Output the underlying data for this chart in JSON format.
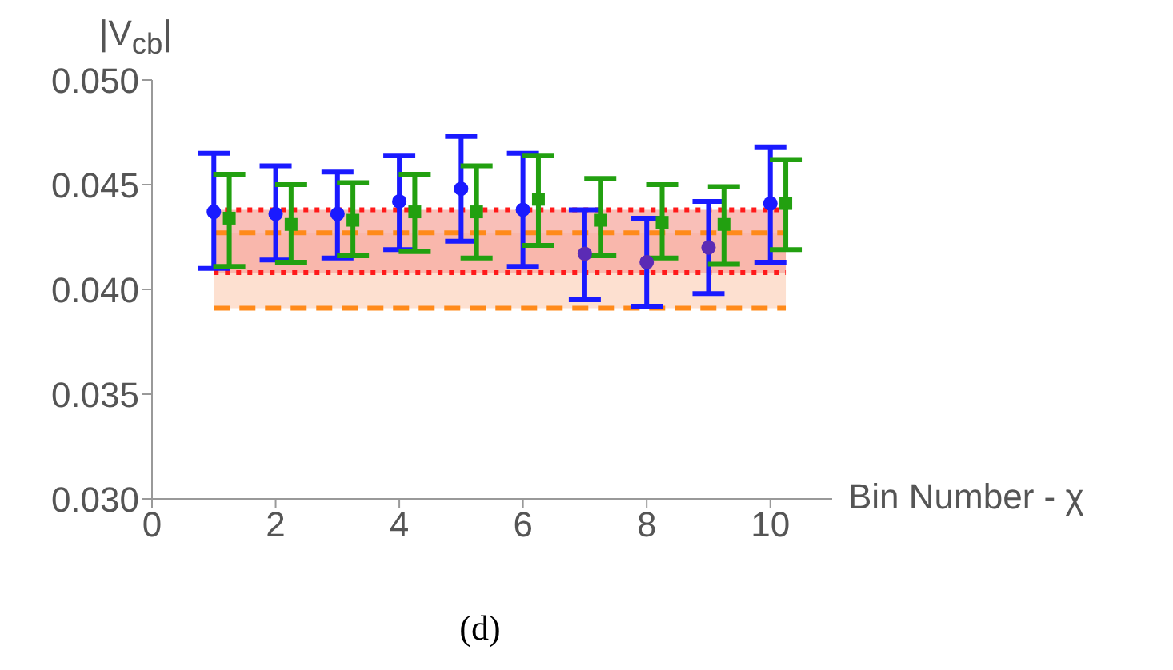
{
  "chart_data": {
    "type": "scatter",
    "xlabel": "Bin Number - χ",
    "ylabel": "|V$_{cb}$|",
    "annotations": [
      "(d)"
    ],
    "xlim": [
      0,
      11
    ],
    "xticks": [
      0,
      2,
      4,
      6,
      8,
      10
    ],
    "ylim": [
      0.03,
      0.05
    ],
    "yticks": [
      {
        "value": 0.03,
        "label": "0.030"
      },
      0.035,
      {
        "value": 0.04,
        "label": "0.040"
      },
      0.045,
      {
        "value": 0.05,
        "label": "0.050"
      }
    ],
    "grid": false,
    "series": [
      {
        "color": "#1a1aff",
        "colors": [
          "#1a1aff",
          "#1a1aff",
          "#1a1aff",
          "#1a1aff",
          "#1a1aff",
          "#1a1aff",
          "#5b2bb5",
          "#5b2bb5",
          "#5b2bb5",
          "#1a1aff"
        ],
        "marker": "circle",
        "x": [
          1,
          2,
          3,
          4,
          5,
          6,
          7,
          8,
          9,
          10
        ],
        "values": [
          0.0437,
          0.0436,
          0.0436,
          0.0442,
          0.0448,
          0.0438,
          0.0417,
          0.0413,
          0.042,
          0.0441
        ],
        "errors": [
          [
            0.041,
            0.0465
          ],
          [
            0.0414,
            0.0459
          ],
          [
            0.0415,
            0.0456
          ],
          [
            0.0419,
            0.0464
          ],
          [
            0.0423,
            0.0473
          ],
          [
            0.0411,
            0.0465
          ],
          [
            0.0395,
            0.0438
          ],
          [
            0.0392,
            0.0434
          ],
          [
            0.0398,
            0.0442
          ],
          [
            0.0413,
            0.0468
          ]
        ]
      },
      {
        "color": "#22a010",
        "marker": "square",
        "x": [
          1.25,
          2.25,
          3.25,
          4.25,
          5.25,
          6.25,
          7.25,
          8.25,
          9.25,
          10.25
        ],
        "values": [
          0.0434,
          0.0431,
          0.0433,
          0.0437,
          0.0437,
          0.0443,
          0.0433,
          0.0432,
          0.0431,
          0.0441
        ],
        "errors": [
          [
            0.0411,
            0.0455
          ],
          [
            0.0413,
            0.045
          ],
          [
            0.0416,
            0.0451
          ],
          [
            0.0418,
            0.0455
          ],
          [
            0.0415,
            0.0459
          ],
          [
            0.0421,
            0.0464
          ],
          [
            0.0416,
            0.0453
          ],
          [
            0.0415,
            0.045
          ],
          [
            0.0412,
            0.0449
          ],
          [
            0.0419,
            0.0462
          ]
        ]
      }
    ],
    "bands": [
      {
        "axis": "y",
        "from": 0.0391,
        "to": 0.0427,
        "color": "#fcd5c0"
      },
      {
        "axis": "y",
        "from": 0.0408,
        "to": 0.0438,
        "color": "#f7a9a0"
      }
    ],
    "ref_lines": [
      {
        "axis": "y",
        "value": 0.0438,
        "color": "#ff1a1a",
        "line_style": "dotted"
      },
      {
        "axis": "y",
        "value": 0.0408,
        "color": "#ff1a1a",
        "line_style": "dotted"
      },
      {
        "axis": "y",
        "value": 0.0427,
        "color": "#ff8a1a",
        "line_style": "dashed"
      },
      {
        "axis": "y",
        "value": 0.0391,
        "color": "#ff8a1a",
        "line_style": "dashed"
      }
    ]
  }
}
